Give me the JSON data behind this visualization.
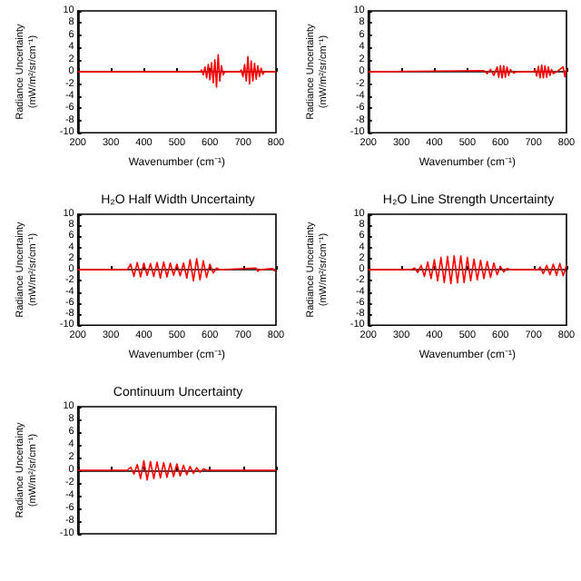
{
  "chart_data": [
    {
      "type": "line",
      "xlabel": "Wavenumber (cm⁻¹)",
      "ylabel": "Radiance Uncertainty (mW/m²/sr/cm⁻¹)",
      "xlim": [
        200,
        800
      ],
      "xticks": [
        200,
        300,
        400,
        500,
        600,
        700,
        800
      ],
      "ylim": [
        -10,
        10
      ],
      "yticks": [
        -10,
        -8,
        -6,
        -4,
        -2,
        0,
        2,
        4,
        6,
        8,
        10
      ],
      "color": "#ff0000",
      "x": [
        200,
        570,
        575,
        580,
        585,
        590,
        595,
        600,
        605,
        610,
        615,
        620,
        625,
        630,
        635,
        640,
        645,
        690,
        695,
        700,
        705,
        710,
        715,
        720,
        725,
        730,
        735,
        740,
        745,
        750,
        755,
        760,
        765,
        800
      ],
      "values": [
        0,
        0,
        0.3,
        -0.5,
        0.8,
        -1,
        1.2,
        -1.3,
        1.5,
        -1.8,
        2,
        -2.5,
        2.8,
        -1.5,
        1,
        -0.5,
        0,
        0,
        0.3,
        -0.8,
        1.2,
        -1.5,
        2.5,
        -2,
        1.8,
        -1.5,
        1.4,
        -1.2,
        1,
        -0.8,
        0.6,
        -0.4,
        0,
        0
      ]
    },
    {
      "type": "line",
      "xlabel": "Wavenumber (cm⁻¹)",
      "ylabel": "Radiance Uncertainty (mW/m²/sr/cm⁻¹)",
      "xlim": [
        200,
        800
      ],
      "xticks": [
        200,
        300,
        400,
        500,
        600,
        700,
        800
      ],
      "ylim": [
        -10,
        10
      ],
      "yticks": [
        -10,
        -8,
        -6,
        -4,
        -2,
        0,
        2,
        4,
        6,
        8,
        10
      ],
      "color": "#ff0000",
      "x": [
        200,
        550,
        560,
        570,
        580,
        590,
        595,
        600,
        605,
        610,
        615,
        620,
        625,
        630,
        640,
        650,
        700,
        705,
        710,
        715,
        720,
        725,
        730,
        735,
        740,
        745,
        750,
        755,
        760,
        770,
        790,
        795,
        800
      ],
      "values": [
        0,
        0.2,
        -0.3,
        0.4,
        -0.6,
        0.8,
        -0.9,
        1,
        -1,
        1,
        -0.9,
        0.8,
        -0.6,
        0.4,
        -0.2,
        0,
        0,
        0.4,
        -0.7,
        0.9,
        -1,
        1.1,
        -1,
        1,
        -0.9,
        0.8,
        -0.6,
        0.4,
        -0.3,
        0,
        0.8,
        -0.8,
        0.5
      ]
    },
    {
      "type": "line",
      "title": "H₂O Half Width Uncertainty",
      "xlabel": "Wavenumber (cm⁻¹)",
      "ylabel": "Radiance Uncertainty (mW/m²/sr/cm⁻¹)",
      "xlim": [
        200,
        800
      ],
      "xticks": [
        200,
        300,
        400,
        500,
        600,
        700,
        800
      ],
      "ylim": [
        -10,
        10
      ],
      "yticks": [
        -10,
        -8,
        -6,
        -4,
        -2,
        0,
        2,
        4,
        6,
        8,
        10
      ],
      "color": "#ff0000",
      "x": [
        200,
        350,
        360,
        370,
        380,
        390,
        400,
        410,
        420,
        430,
        440,
        450,
        460,
        470,
        480,
        490,
        500,
        510,
        520,
        530,
        540,
        550,
        560,
        570,
        580,
        590,
        600,
        610,
        620,
        630,
        740,
        745,
        750,
        790,
        795,
        800
      ],
      "values": [
        0,
        0,
        1,
        -1.2,
        1.3,
        -1.3,
        1.2,
        -1,
        1.1,
        -1.2,
        1.3,
        -1.5,
        1.4,
        -1.3,
        1.2,
        -1,
        1,
        -1.1,
        1.2,
        -1.5,
        1.8,
        -2,
        2,
        -1.8,
        1.6,
        -1.4,
        1,
        -0.6,
        0.3,
        0,
        0.3,
        -0.3,
        0,
        0.2,
        -0.2,
        0
      ]
    },
    {
      "type": "line",
      "title": "H₂O Line Strength Uncertainty",
      "xlabel": "Wavenumber (cm⁻¹)",
      "ylabel": "Radiance Uncertainty (mW/m²/sr/cm⁻¹)",
      "xlim": [
        200,
        800
      ],
      "xticks": [
        200,
        300,
        400,
        500,
        600,
        700,
        800
      ],
      "ylim": [
        -10,
        10
      ],
      "yticks": [
        -10,
        -8,
        -6,
        -4,
        -2,
        0,
        2,
        4,
        6,
        8,
        10
      ],
      "color": "#ff0000",
      "x": [
        200,
        330,
        340,
        350,
        360,
        370,
        380,
        390,
        400,
        410,
        420,
        430,
        440,
        450,
        460,
        470,
        480,
        490,
        500,
        510,
        520,
        530,
        540,
        550,
        560,
        570,
        580,
        590,
        600,
        610,
        620,
        630,
        715,
        720,
        730,
        740,
        750,
        760,
        770,
        780,
        790,
        800
      ],
      "values": [
        0,
        0,
        0.3,
        -0.5,
        0.8,
        -1.2,
        1.4,
        -1.6,
        1.8,
        -2,
        2.2,
        -2.3,
        2.4,
        -2.5,
        2.5,
        -2.4,
        2.5,
        -2.3,
        2.2,
        -2,
        1.9,
        -1.8,
        1.7,
        -1.6,
        1.5,
        -1.4,
        1.2,
        -0.9,
        0.6,
        -0.4,
        0.2,
        0,
        0,
        0.5,
        -0.7,
        0.8,
        -0.9,
        1,
        -1,
        1.1,
        -1.1,
        0.8
      ]
    },
    {
      "type": "line",
      "title": "Continuum Uncertainty",
      "ylabel": "Radiance Uncertainty (mW/m²/sr/cm⁻¹)",
      "xlim": [
        200,
        800
      ],
      "xticks": [
        200,
        300,
        400,
        500,
        600,
        700,
        800
      ],
      "ylim": [
        -10,
        10
      ],
      "yticks": [
        -10,
        -8,
        -6,
        -4,
        -2,
        0,
        2,
        4,
        6,
        8,
        10
      ],
      "tick_labels": "y",
      "color": "#ff0000",
      "x": [
        200,
        350,
        360,
        370,
        380,
        390,
        400,
        410,
        420,
        430,
        440,
        450,
        460,
        470,
        480,
        490,
        500,
        510,
        520,
        530,
        540,
        550,
        560,
        570,
        580,
        590,
        800
      ],
      "values": [
        0,
        0,
        0.5,
        -0.6,
        0.9,
        -1.3,
        1.5,
        -1.5,
        1.4,
        -1.3,
        1.3,
        -1.2,
        1.2,
        -1.1,
        1.1,
        -1,
        1,
        -0.9,
        0.8,
        -0.7,
        0.6,
        -0.5,
        0.4,
        -0.3,
        0.2,
        0,
        0
      ]
    }
  ]
}
